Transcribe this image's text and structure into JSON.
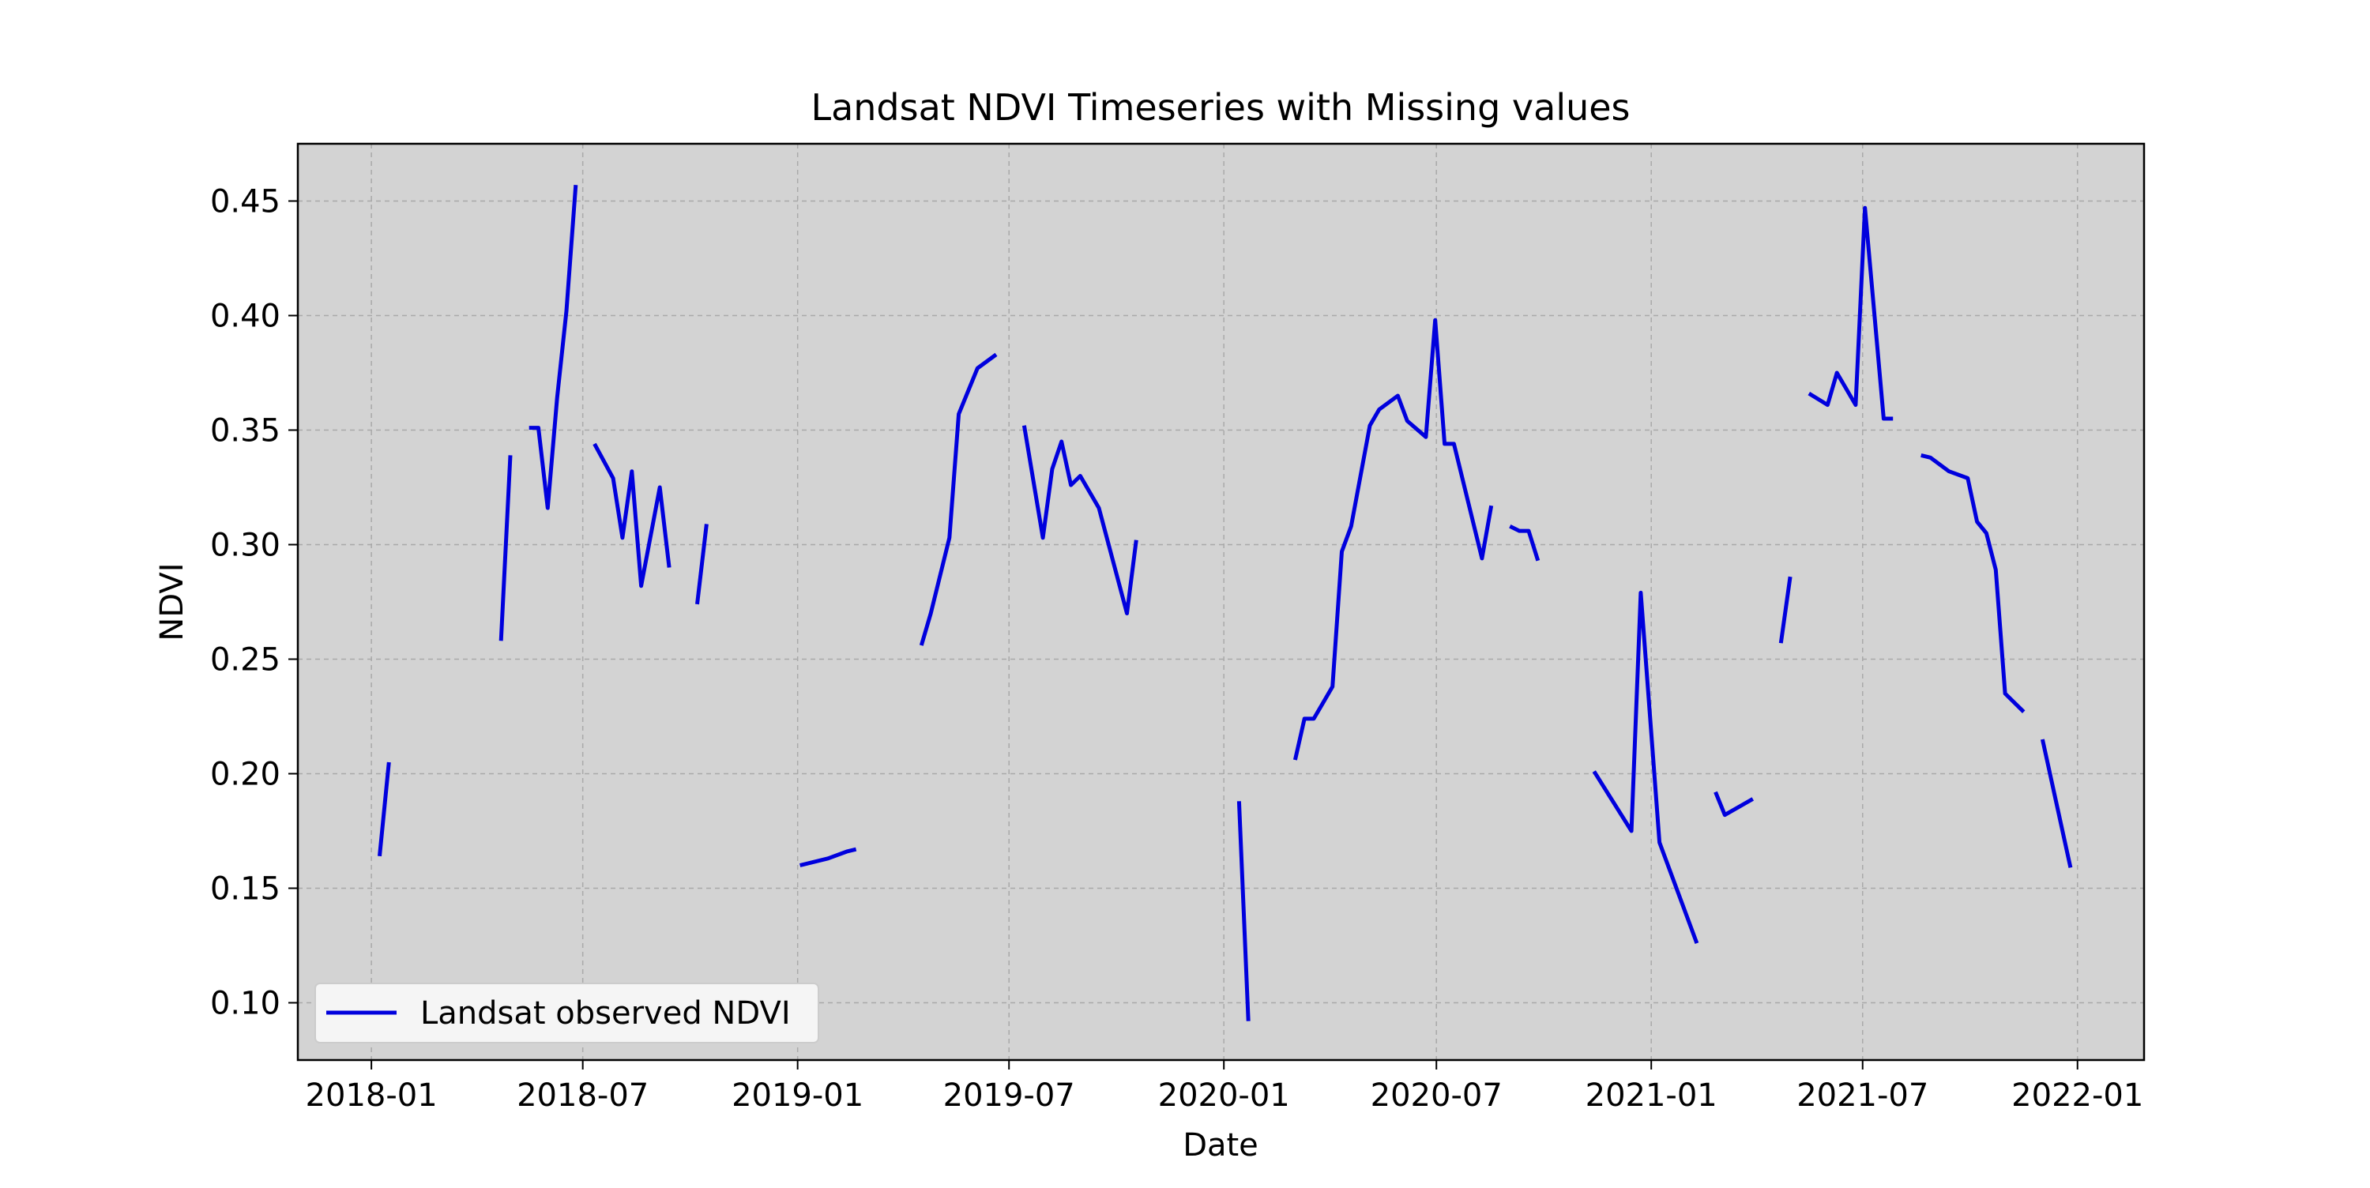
{
  "chart_data": {
    "type": "line",
    "title": "Landsat NDVI Timeseries with Missing values",
    "xlabel": "Date",
    "ylabel": "NDVI",
    "xlim": [
      "2017-10-30",
      "2022-02-27"
    ],
    "ylim": [
      0.075,
      0.475
    ],
    "x_ticks": [
      "2018-01",
      "2018-07",
      "2019-01",
      "2019-07",
      "2020-01",
      "2020-07",
      "2021-01",
      "2021-07",
      "2022-01"
    ],
    "y_ticks": [
      0.1,
      0.15,
      0.2,
      0.25,
      0.3,
      0.35,
      0.4,
      0.45
    ],
    "y_tick_labels": [
      "0.10",
      "0.15",
      "0.20",
      "0.25",
      "0.30",
      "0.35",
      "0.40",
      "0.45"
    ],
    "grid": true,
    "legend_position": "lower-left",
    "plot_background": "#d3d3d3",
    "line_color": "#0000dd",
    "series": [
      {
        "name": "Landsat observed NDVI",
        "segments": [
          [
            [
              "2018-01-08",
              0.164
            ],
            [
              "2018-01-16",
              0.205
            ]
          ],
          [
            [
              "2018-04-22",
              0.258
            ],
            [
              "2018-04-30",
              0.339
            ]
          ],
          [
            [
              "2018-05-16",
              0.351
            ],
            [
              "2018-05-24",
              0.351
            ],
            [
              "2018-06-01",
              0.316
            ],
            [
              "2018-06-09",
              0.364
            ],
            [
              "2018-06-17",
              0.402
            ],
            [
              "2018-06-25",
              0.457
            ]
          ],
          [
            [
              "2018-07-11",
              0.344
            ],
            [
              "2018-07-27",
              0.329
            ],
            [
              "2018-08-04",
              0.303
            ],
            [
              "2018-08-12",
              0.332
            ],
            [
              "2018-08-20",
              0.282
            ],
            [
              "2018-09-05",
              0.325
            ],
            [
              "2018-09-13",
              0.29
            ]
          ],
          [
            [
              "2018-10-07",
              0.274
            ],
            [
              "2018-10-15",
              0.309
            ]
          ],
          [
            [
              "2019-01-03",
              0.16
            ],
            [
              "2019-01-27",
              0.163
            ],
            [
              "2019-02-12",
              0.166
            ],
            [
              "2019-02-20",
              0.167
            ]
          ],
          [
            [
              "2019-04-17",
              0.256
            ],
            [
              "2019-04-25",
              0.27
            ],
            [
              "2019-05-11",
              0.303
            ],
            [
              "2019-05-19",
              0.357
            ],
            [
              "2019-06-04",
              0.377
            ],
            [
              "2019-06-20",
              0.383
            ]
          ],
          [
            [
              "2019-07-14",
              0.352
            ],
            [
              "2019-07-30",
              0.303
            ],
            [
              "2019-08-07",
              0.333
            ],
            [
              "2019-08-15",
              0.345
            ],
            [
              "2019-08-23",
              0.326
            ],
            [
              "2019-08-31",
              0.33
            ],
            [
              "2019-09-16",
              0.316
            ],
            [
              "2019-10-10",
              0.27
            ],
            [
              "2019-10-18",
              0.302
            ]
          ],
          [
            [
              "2020-01-14",
              0.188
            ],
            [
              "2020-01-22",
              0.092
            ]
          ],
          [
            [
              "2020-03-02",
              0.206
            ],
            [
              "2020-03-10",
              0.224
            ],
            [
              "2020-03-18",
              0.224
            ],
            [
              "2020-04-03",
              0.238
            ],
            [
              "2020-04-11",
              0.297
            ],
            [
              "2020-04-19",
              0.308
            ],
            [
              "2020-05-05",
              0.352
            ],
            [
              "2020-05-13",
              0.359
            ],
            [
              "2020-05-29",
              0.365
            ],
            [
              "2020-06-06",
              0.354
            ],
            [
              "2020-06-22",
              0.347
            ],
            [
              "2020-06-30",
              0.398
            ],
            [
              "2020-07-08",
              0.344
            ],
            [
              "2020-07-16",
              0.344
            ],
            [
              "2020-08-09",
              0.294
            ],
            [
              "2020-08-17",
              0.317
            ]
          ],
          [
            [
              "2020-09-02",
              0.308
            ],
            [
              "2020-09-10",
              0.306
            ],
            [
              "2020-09-18",
              0.306
            ],
            [
              "2020-09-26",
              0.293
            ]
          ],
          [
            [
              "2020-11-13",
              0.201
            ],
            [
              "2020-12-15",
              0.175
            ],
            [
              "2020-12-23",
              0.279
            ],
            [
              "2021-01-08",
              0.17
            ],
            [
              "2021-02-09",
              0.126
            ]
          ],
          [
            [
              "2021-02-25",
              0.192
            ],
            [
              "2021-03-05",
              0.182
            ],
            [
              "2021-03-29",
              0.189
            ]
          ],
          [
            [
              "2021-04-22",
              0.257
            ],
            [
              "2021-04-30",
              0.286
            ]
          ],
          [
            [
              "2021-05-16",
              0.366
            ],
            [
              "2021-06-01",
              0.361
            ],
            [
              "2021-06-09",
              0.375
            ],
            [
              "2021-06-25",
              0.361
            ],
            [
              "2021-07-03",
              0.447
            ],
            [
              "2021-07-19",
              0.355
            ],
            [
              "2021-07-27",
              0.355
            ]
          ],
          [
            [
              "2021-08-20",
              0.339
            ],
            [
              "2021-08-28",
              0.338
            ],
            [
              "2021-09-13",
              0.332
            ],
            [
              "2021-09-29",
              0.329
            ],
            [
              "2021-10-07",
              0.31
            ],
            [
              "2021-10-15",
              0.305
            ],
            [
              "2021-10-23",
              0.289
            ],
            [
              "2021-10-31",
              0.235
            ],
            [
              "2021-11-16",
              0.227
            ]
          ],
          [
            [
              "2021-12-02",
              0.215
            ],
            [
              "2021-12-26",
              0.159
            ]
          ]
        ]
      }
    ]
  }
}
